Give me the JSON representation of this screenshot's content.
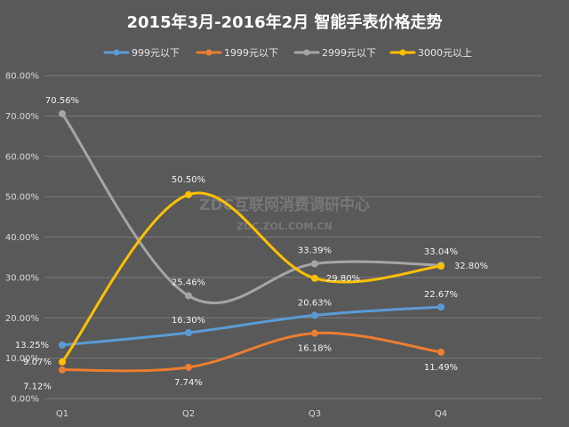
{
  "chart_data": {
    "type": "line",
    "title": "2015年3月-2016年2月  智能手表价格走势",
    "categories": [
      "Q1",
      "Q2",
      "Q3",
      "Q4"
    ],
    "ylim": [
      0,
      80
    ],
    "y_ticks": [
      "0.00%",
      "10.00%",
      "20.00%",
      "30.00%",
      "40.00%",
      "50.00%",
      "60.00%",
      "70.00%",
      "80.00%"
    ],
    "grid": true,
    "smooth": true,
    "legend_position": "top",
    "series": [
      {
        "name": "999元以下",
        "color": "#5b9bd5",
        "values": [
          13.25,
          16.3,
          20.63,
          22.67
        ],
        "labels": [
          "13.25%",
          "16.30%",
          "20.63%",
          "22.67%"
        ]
      },
      {
        "name": "1999元以下",
        "color": "#ed7d31",
        "values": [
          7.12,
          7.74,
          16.18,
          11.49
        ],
        "labels": [
          "7.12%",
          "7.74%",
          "16.18%",
          "11.49%"
        ]
      },
      {
        "name": "2999元以下",
        "color": "#a5a5a5",
        "values": [
          70.56,
          25.46,
          33.39,
          33.04
        ],
        "labels": [
          "70.56%",
          "25.46%",
          "33.39%",
          "33.04%"
        ]
      },
      {
        "name": "3000元以上",
        "color": "#ffc000",
        "values": [
          9.07,
          50.5,
          29.8,
          32.8
        ],
        "labels": [
          "9.07%",
          "50.50%",
          "29.80%",
          "32.80%"
        ]
      }
    ],
    "watermark": [
      "ZDC互联网消费调研中心",
      "ZDC.ZOL.COM.CN"
    ]
  }
}
